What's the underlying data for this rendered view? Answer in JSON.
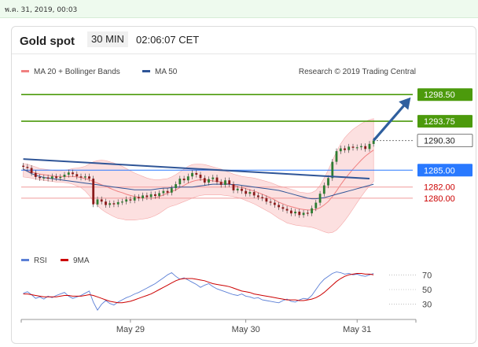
{
  "timestamp": "พ.ค. 31, 2019, 00:03",
  "header": {
    "instrument": "Gold spot",
    "timeframe": "30 MIN",
    "clock": "02:06:07 CET"
  },
  "legend": {
    "ma20_bb": "MA 20 + Bollinger Bands",
    "ma20_color": "#f08080",
    "ma50": "MA 50",
    "ma50_color": "#2f5597",
    "credit": "Research © 2019 Trading Central",
    "rsi": "RSI",
    "rsi_color": "#5b7fd6",
    "ma9": "9MA",
    "ma9_color": "#cc0000"
  },
  "chart_data": {
    "type": "line",
    "price_axis": {
      "ylim": [
        1271,
        1300.5
      ],
      "tick_labels": [
        "1298.50",
        "1293.75",
        "1290.30",
        "1285.00",
        "1282.00",
        "1280.00"
      ]
    },
    "levels": [
      {
        "label": "1298.50",
        "value": 1298.5,
        "color": "#4c9a0c",
        "text_color": "#ffffff"
      },
      {
        "label": "1293.75",
        "value": 1293.75,
        "color": "#4c9a0c",
        "text_color": "#ffffff"
      },
      {
        "label": "1290.30",
        "value": 1290.3,
        "color": "#ffffff",
        "text_color": "#222222",
        "border": "#555555"
      },
      {
        "label": "1285.00",
        "value": 1285.0,
        "color": "#2979ff",
        "text_color": "#ffffff"
      },
      {
        "label": "1282.00",
        "value": 1282.0,
        "color": "none",
        "text_color": "#cc0000"
      },
      {
        "label": "1280.00",
        "value": 1280.0,
        "color": "none",
        "text_color": "#cc0000"
      }
    ],
    "x_labels": [
      {
        "label": "May 29",
        "bar": 26
      },
      {
        "label": "May 30",
        "bar": 54
      },
      {
        "label": "May 31",
        "bar": 81
      }
    ],
    "price_series": [
      1285.6,
      1285.4,
      1284.5,
      1283.8,
      1283.6,
      1283.7,
      1283.5,
      1283.9,
      1283.6,
      1283.8,
      1284.2,
      1284.6,
      1284.3,
      1283.9,
      1283.7,
      1283.9,
      1283.5,
      1278.9,
      1279.8,
      1279.4,
      1278.8,
      1279.1,
      1278.9,
      1279.3,
      1279.4,
      1279.8,
      1279.6,
      1280.2,
      1280.0,
      1280.5,
      1280.2,
      1280.7,
      1280.4,
      1280.9,
      1281.3,
      1281.0,
      1281.8,
      1282.5,
      1283.5,
      1283.2,
      1283.9,
      1284.5,
      1284.2,
      1283.6,
      1282.8,
      1283.4,
      1283.7,
      1282.9,
      1282.4,
      1283.2,
      1282.5,
      1281.4,
      1281.7,
      1281.3,
      1280.8,
      1281.1,
      1280.5,
      1280.2,
      1280.0,
      1279.4,
      1279.2,
      1278.8,
      1278.4,
      1278.1,
      1277.8,
      1277.3,
      1277.6,
      1277.0,
      1277.4,
      1277.3,
      1278.2,
      1279.2,
      1280.8,
      1282.3,
      1283.6,
      1286.5,
      1288.4,
      1288.9,
      1288.6,
      1289.2,
      1289.0,
      1289.1,
      1289.3,
      1288.8,
      1289.7,
      1290.3
    ],
    "ma50_series": [
      1285.2,
      1284.8,
      1284.4,
      1284.1,
      1283.9,
      1283.7,
      1283.6,
      1283.5,
      1283.4,
      1283.3,
      1283.2,
      1283.1,
      1283.0,
      1282.9,
      1282.8,
      1282.7,
      1282.6,
      1282.5,
      1282.4,
      1282.3,
      1282.2,
      1282.1,
      1282.0,
      1281.9,
      1281.8,
      1281.7,
      1281.6,
      1281.5,
      1281.5,
      1281.5,
      1281.5,
      1281.5,
      1281.6,
      1281.7,
      1281.8,
      1281.8,
      1281.9,
      1282.0,
      1282.0,
      1282.0,
      1282.0,
      1282.0,
      1282.1,
      1282.2,
      1282.3,
      1282.4,
      1282.5,
      1282.5,
      1282.5,
      1282.5,
      1282.5,
      1282.4,
      1282.4,
      1282.3,
      1282.2,
      1282.1,
      1282.0,
      1281.9,
      1281.8,
      1281.7,
      1281.6,
      1281.5,
      1281.4,
      1281.2,
      1281.0,
      1280.8,
      1280.6,
      1280.4,
      1280.2,
      1280.0,
      1279.9,
      1279.9,
      1280.0,
      1280.1,
      1280.3,
      1280.5,
      1280.7,
      1280.9,
      1281.1,
      1281.3,
      1281.5,
      1281.7,
      1281.9,
      1282.1,
      1282.3,
      1282.5
    ],
    "ma20_series": [
      1285.0,
      1284.9,
      1284.7,
      1284.5,
      1284.3,
      1284.2,
      1284.1,
      1284.0,
      1283.9,
      1283.9,
      1283.9,
      1283.9,
      1283.9,
      1283.8,
      1283.7,
      1283.5,
      1283.3,
      1283.0,
      1282.7,
      1282.4,
      1282.1,
      1281.8,
      1281.5,
      1281.2,
      1281.0,
      1280.7,
      1280.5,
      1280.3,
      1280.2,
      1280.1,
      1280.0,
      1280.0,
      1280.1,
      1280.3,
      1280.6,
      1280.9,
      1281.2,
      1281.5,
      1281.9,
      1282.3,
      1282.7,
      1283.0,
      1283.2,
      1283.3,
      1283.3,
      1283.2,
      1283.1,
      1283.0,
      1282.9,
      1282.7,
      1282.5,
      1282.3,
      1282.1,
      1281.9,
      1281.7,
      1281.5,
      1281.3,
      1281.0,
      1280.7,
      1280.4,
      1280.1,
      1279.7,
      1279.3,
      1279.0,
      1278.7,
      1278.5,
      1278.3,
      1278.1,
      1278.0,
      1277.9,
      1277.9,
      1278.0,
      1278.3,
      1278.8,
      1279.4,
      1280.3,
      1281.3,
      1282.4,
      1283.4,
      1284.3,
      1285.2,
      1286.0,
      1286.8,
      1287.5,
      1288.1,
      1288.6
    ],
    "bb_width": [
      1.2,
      1.2,
      1.1,
      1.1,
      1.0,
      1.0,
      1.0,
      1.0,
      1.0,
      1.0,
      1.1,
      1.2,
      1.4,
      1.6,
      1.8,
      2.2,
      2.8,
      3.5,
      4.0,
      4.4,
      4.6,
      4.7,
      4.8,
      4.8,
      4.7,
      4.6,
      4.4,
      4.2,
      4.0,
      3.8,
      3.6,
      3.4,
      3.2,
      3.0,
      2.8,
      2.6,
      2.6,
      2.7,
      2.8,
      2.9,
      3.0,
      3.0,
      2.9,
      2.8,
      2.7,
      2.6,
      2.5,
      2.4,
      2.3,
      2.2,
      2.1,
      2.0,
      2.0,
      2.0,
      2.1,
      2.2,
      2.3,
      2.4,
      2.5,
      2.6,
      2.7,
      2.8,
      2.9,
      3.0,
      3.1,
      3.1,
      3.1,
      3.0,
      3.0,
      3.0,
      3.1,
      3.4,
      4.0,
      4.8,
      5.6,
      6.4,
      7.0,
      7.3,
      7.4,
      7.3,
      7.1,
      6.8,
      6.5,
      6.2,
      5.9,
      5.6
    ],
    "trendline": {
      "from": {
        "bar": 0,
        "value": 1287.0
      },
      "to": {
        "bar": 84,
        "value": 1283.5
      }
    },
    "arrow": {
      "from": {
        "bar": 85,
        "value": 1290.3
      },
      "to": {
        "bar": 94,
        "value": 1298.0
      }
    },
    "rsi_axis": {
      "ylim": [
        20,
        80
      ],
      "ticks": [
        70,
        50,
        30
      ]
    },
    "rsi_series": [
      45,
      47,
      43,
      38,
      40,
      37,
      41,
      39,
      42,
      44,
      46,
      41,
      38,
      40,
      42,
      45,
      48,
      33,
      22,
      30,
      35,
      31,
      29,
      33,
      36,
      39,
      41,
      44,
      46,
      49,
      52,
      55,
      58,
      62,
      66,
      70,
      73,
      68,
      64,
      66,
      63,
      60,
      57,
      53,
      56,
      58,
      54,
      51,
      49,
      47,
      45,
      43,
      42,
      44,
      41,
      40,
      38,
      39,
      36,
      35,
      34,
      33,
      32,
      35,
      37,
      34,
      33,
      36,
      38,
      37,
      42,
      50,
      58,
      64,
      68,
      72,
      74,
      73,
      71,
      72,
      70,
      71,
      69,
      68,
      70,
      72
    ],
    "ma9_series": [
      44,
      44,
      43,
      42,
      41,
      40,
      40,
      40,
      40,
      41,
      42,
      42,
      41,
      41,
      41,
      42,
      43,
      42,
      40,
      38,
      36,
      34,
      33,
      32,
      32,
      33,
      34,
      36,
      38,
      40,
      42,
      44,
      47,
      50,
      53,
      56,
      59,
      62,
      64,
      65,
      65,
      65,
      64,
      63,
      62,
      60,
      58,
      57,
      56,
      55,
      54,
      52,
      50,
      48,
      47,
      46,
      44,
      43,
      42,
      41,
      40,
      39,
      38,
      37,
      36,
      36,
      36,
      35,
      35,
      36,
      37,
      39,
      42,
      46,
      51,
      56,
      61,
      65,
      68,
      70,
      71,
      72,
      72,
      71,
      71,
      70
    ]
  }
}
